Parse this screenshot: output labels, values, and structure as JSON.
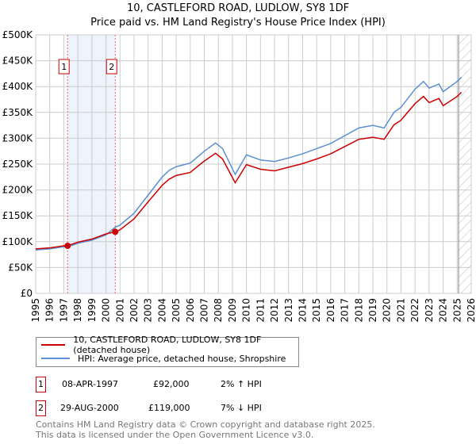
{
  "chart_data": {
    "type": "line",
    "title": "10, CASTLEFORD ROAD, LUDLOW, SY8 1DF",
    "subtitle": "Price paid vs. HM Land Registry's House Price Index (HPI)",
    "xlim": [
      1995,
      2026
    ],
    "ylim": [
      0,
      500000
    ],
    "x_ticks": [
      "1995",
      "1996",
      "1997",
      "1998",
      "1999",
      "2000",
      "2001",
      "2002",
      "2003",
      "2004",
      "2005",
      "2006",
      "2007",
      "2008",
      "2009",
      "2010",
      "2011",
      "2012",
      "2013",
      "2014",
      "2015",
      "2016",
      "2017",
      "2018",
      "2019",
      "2020",
      "2021",
      "2022",
      "2023",
      "2024",
      "2025",
      "2026"
    ],
    "y_ticks": [
      {
        "v": 0,
        "label": "£0"
      },
      {
        "v": 50000,
        "label": "£50K"
      },
      {
        "v": 100000,
        "label": "£100K"
      },
      {
        "v": 150000,
        "label": "£150K"
      },
      {
        "v": 200000,
        "label": "£200K"
      },
      {
        "v": 250000,
        "label": "£250K"
      },
      {
        "v": 300000,
        "label": "£300K"
      },
      {
        "v": 350000,
        "label": "£350K"
      },
      {
        "v": 400000,
        "label": "£400K"
      },
      {
        "v": 450000,
        "label": "£450K"
      },
      {
        "v": 500000,
        "label": "£500K"
      }
    ],
    "grid": true,
    "forecast_from": 2025.1,
    "x": [
      1995.0,
      1996.0,
      1997.0,
      1997.27,
      1998.0,
      1999.0,
      2000.0,
      2000.66,
      2001.0,
      2002.0,
      2003.0,
      2004.0,
      2004.5,
      2005.0,
      2006.0,
      2007.0,
      2007.8,
      2008.3,
      2009.2,
      2010.0,
      2011.0,
      2012.0,
      2013.0,
      2014.0,
      2015.0,
      2016.0,
      2017.0,
      2018.0,
      2019.0,
      2019.8,
      2020.5,
      2021.0,
      2022.0,
      2022.6,
      2023.0,
      2023.7,
      2024.0,
      2025.0,
      2025.3
    ],
    "series": [
      {
        "name": "10, CASTLEFORD ROAD, LUDLOW, SY8 1DF (detached house)",
        "color": "#cc0000",
        "values": [
          86000,
          88000,
          92000,
          92000,
          99000,
          105000,
          115000,
          119000,
          123000,
          144000,
          177000,
          209000,
          221000,
          228000,
          234000,
          256000,
          271000,
          260000,
          214000,
          249000,
          240000,
          237000,
          244000,
          251000,
          260000,
          270000,
          284000,
          298000,
          302000,
          298000,
          326000,
          335000,
          367000,
          381000,
          369000,
          377000,
          363000,
          381000,
          389000
        ]
      },
      {
        "name": "HPI: Average price, detached house, Shropshire",
        "color": "#5b8fd4",
        "values": [
          84000,
          86000,
          90000,
          90000,
          97000,
          103000,
          113000,
          128000,
          132000,
          155000,
          190000,
          225000,
          238000,
          245000,
          252000,
          275000,
          291000,
          280000,
          230000,
          268000,
          258000,
          255000,
          262000,
          270000,
          280000,
          290000,
          305000,
          320000,
          325000,
          320000,
          350000,
          360000,
          395000,
          410000,
          397000,
          405000,
          390000,
          410000,
          418000
        ]
      }
    ],
    "sales": [
      {
        "id": "1",
        "x": 1997.27,
        "date": "08-APR-1997",
        "price": "£92,000",
        "price_value": 92000,
        "hpi": "2% ↑ HPI"
      },
      {
        "id": "2",
        "x": 2000.66,
        "date": "29-AUG-2000",
        "price": "£119,000",
        "price_value": 119000,
        "hpi": "7% ↓ HPI"
      }
    ]
  },
  "footer": {
    "line1": "Contains HM Land Registry data © Crown copyright and database right 2025.",
    "line2": "This data is licensed under the Open Government Licence v3.0."
  }
}
